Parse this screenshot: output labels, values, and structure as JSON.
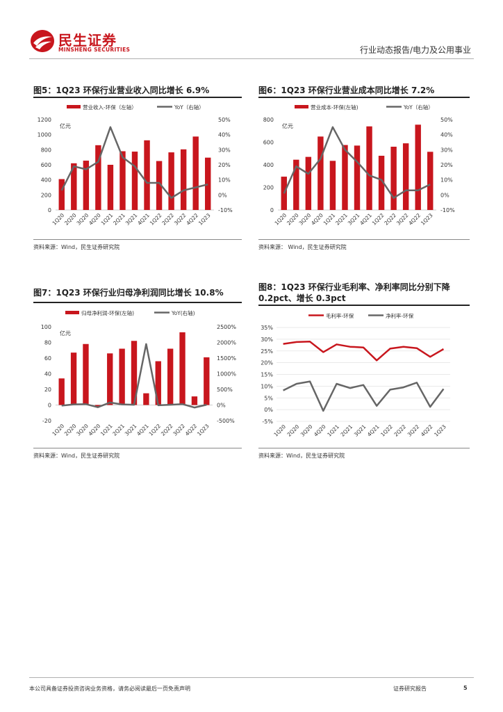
{
  "header": {
    "logo_cn": "民生证券",
    "logo_en": "MINSHENG SECURITIES",
    "report_type": "行业动态报告/电力及公用事业"
  },
  "footer": {
    "disclaimer": "本公司具备证券投资咨询业务资格，请务必阅读最后一页免责声明",
    "report_label": "证券研究报告",
    "page_number": "5"
  },
  "brand_colors": {
    "red": "#c8161d",
    "gray": "#666666"
  },
  "figures": [
    {
      "title": "图5：1Q23 环保行业营业收入同比增长 6.9%",
      "source": "资料来源：Wind，民生证券研究院",
      "legend": [
        "营业收入-环保（左轴）",
        "YoY（右轴）"
      ],
      "unit_label": "亿元"
    },
    {
      "title": "图6：1Q23 环保行业营业成本同比增长 7.2%",
      "source": "资料来源：  Wind，民生证券研究院",
      "legend": [
        "营业成本-环保(左轴)",
        "YoY（右轴）"
      ],
      "unit_label": "亿元"
    },
    {
      "title": "图7：1Q23 环保行业归母净利润同比增长 10.8%",
      "source": "资料来源：Wind，民生证券研究院",
      "legend": [
        "归母净利润-环保(左轴)",
        "YoY(右轴)"
      ],
      "unit_label": "亿元"
    },
    {
      "title": "图8：1Q23 环保行业毛利率、净利率同比分别下降 0.2pct、增长 0.3pct",
      "source": "资料来源：Wind，民生证券研究院",
      "legend": [
        "毛利率-环保",
        "净利率-环保"
      ],
      "unit_label": ""
    }
  ],
  "chart_data": [
    {
      "type": "bar+line",
      "categories": [
        "1Q20",
        "2Q20",
        "3Q20",
        "4Q20",
        "1Q21",
        "2Q21",
        "3Q21",
        "4Q21",
        "1Q22",
        "2Q22",
        "3Q22",
        "4Q22",
        "1Q23"
      ],
      "series": [
        {
          "name": "营业收入-环保（左轴）",
          "axis": "left",
          "type": "bar",
          "values": [
            410,
            620,
            655,
            860,
            600,
            780,
            775,
            925,
            650,
            765,
            805,
            975,
            695
          ]
        },
        {
          "name": "YoY（右轴）",
          "axis": "right",
          "type": "line",
          "values": [
            3,
            19,
            17,
            22,
            45,
            25,
            19,
            8,
            8,
            -2,
            3,
            5,
            7
          ]
        }
      ],
      "ylim_left": [
        0,
        1200
      ],
      "yticks_left": [
        "0",
        "200",
        "400",
        "600",
        "800",
        "1000",
        "1200"
      ],
      "ylim_right": [
        -10,
        50
      ],
      "yticks_right": [
        "-10%",
        "0%",
        "10%",
        "20%",
        "30%",
        "40%",
        "50%"
      ]
    },
    {
      "type": "bar+line",
      "categories": [
        "1Q20",
        "2Q20",
        "3Q20",
        "4Q20",
        "1Q21",
        "2Q21",
        "3Q21",
        "4Q21",
        "1Q22",
        "2Q22",
        "3Q22",
        "4Q22",
        "1Q23"
      ],
      "series": [
        {
          "name": "营业成本-环保(左轴)",
          "axis": "left",
          "type": "bar",
          "values": [
            295,
            445,
            470,
            650,
            435,
            575,
            570,
            740,
            480,
            560,
            590,
            755,
            515
          ]
        },
        {
          "name": "YoY（右轴）",
          "axis": "right",
          "type": "line",
          "values": [
            1,
            19,
            14,
            24,
            45,
            30,
            22,
            13,
            10,
            -2,
            3,
            3,
            7
          ]
        }
      ],
      "ylim_left": [
        0,
        800
      ],
      "yticks_left": [
        "0",
        "200",
        "400",
        "600",
        "800"
      ],
      "ylim_right": [
        -10,
        50
      ],
      "yticks_right": [
        "-10%",
        "0%",
        "10%",
        "20%",
        "30%",
        "40%",
        "50%"
      ]
    },
    {
      "type": "bar+line",
      "categories": [
        "1Q20",
        "2Q20",
        "3Q20",
        "4Q20",
        "1Q21",
        "2Q21",
        "3Q21",
        "4Q21",
        "1Q22",
        "2Q22",
        "3Q22",
        "4Q22",
        "1Q23"
      ],
      "series": [
        {
          "name": "归母净利润-环保(左轴)",
          "axis": "left",
          "type": "bar",
          "values": [
            34,
            67,
            78,
            -2,
            66,
            72,
            82,
            15,
            56,
            72,
            93,
            11,
            61
          ]
        },
        {
          "name": "YoY(右轴)",
          "axis": "right",
          "type": "line",
          "values": [
            -20,
            20,
            30,
            -70,
            80,
            20,
            10,
            1950,
            -10,
            10,
            30,
            -80,
            10
          ]
        }
      ],
      "ylim_left": [
        -20,
        100
      ],
      "yticks_left": [
        "-20",
        "0",
        "20",
        "40",
        "60",
        "80",
        "100"
      ],
      "ylim_right": [
        -500,
        2500
      ],
      "yticks_right": [
        "-500%",
        "0%",
        "500%",
        "1000%",
        "1500%",
        "2000%",
        "2500%"
      ]
    },
    {
      "type": "line",
      "categories": [
        "1Q20",
        "2Q20",
        "3Q20",
        "4Q20",
        "1Q21",
        "2Q21",
        "3Q21",
        "4Q21",
        "1Q22",
        "2Q22",
        "3Q22",
        "4Q22",
        "1Q23"
      ],
      "series": [
        {
          "name": "毛利率-环保",
          "values": [
            28,
            28.8,
            29,
            24.5,
            27.8,
            26.8,
            26.5,
            21,
            26,
            26.8,
            26.2,
            22.5,
            25.8
          ]
        },
        {
          "name": "净利率-环保",
          "values": [
            8.2,
            11,
            12,
            -0.5,
            11,
            9.2,
            10.5,
            1.6,
            8.5,
            9.5,
            11.5,
            1.2,
            8.8
          ]
        }
      ],
      "ylim": [
        -5,
        35
      ],
      "yticks": [
        "-5%",
        "0%",
        "5%",
        "10%",
        "15%",
        "20%",
        "25%",
        "30%",
        "35%"
      ]
    }
  ]
}
